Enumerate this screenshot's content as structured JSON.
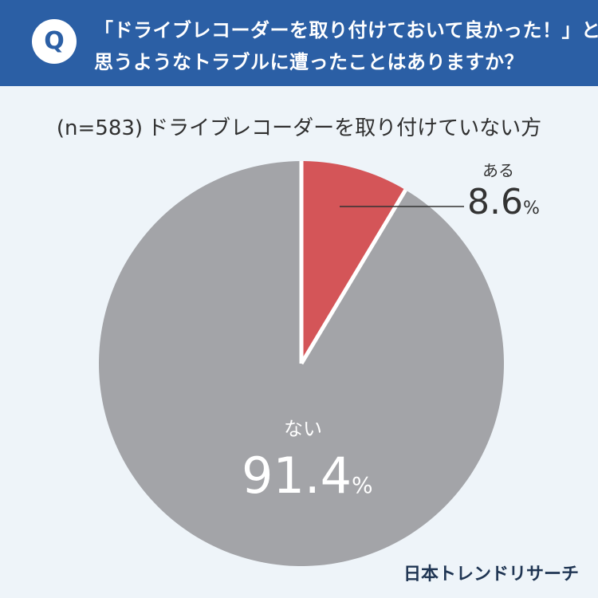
{
  "header": {
    "badge": "Q",
    "question_line1": "「ドライブレコーダーを取り付けておいて良かった！」と",
    "question_line2": "思うようなトラブルに遭ったことはありますか？"
  },
  "subtitle": {
    "sample": "(n=583)",
    "text": "ドライブレコーダーを取り付けていない方"
  },
  "chart_data": {
    "type": "pie",
    "title": "(n=583) ドライブレコーダーを取り付けていない方",
    "slices": [
      {
        "label": "ある",
        "value": 8.6,
        "display": "8.6",
        "color": "#d45558"
      },
      {
        "label": "ない",
        "value": 91.4,
        "display": "91.4",
        "color": "#a3a4a8"
      }
    ],
    "unit": "%",
    "start_angle_deg": 0,
    "direction": "clockwise"
  },
  "brand": "日本トレンドリサーチ"
}
